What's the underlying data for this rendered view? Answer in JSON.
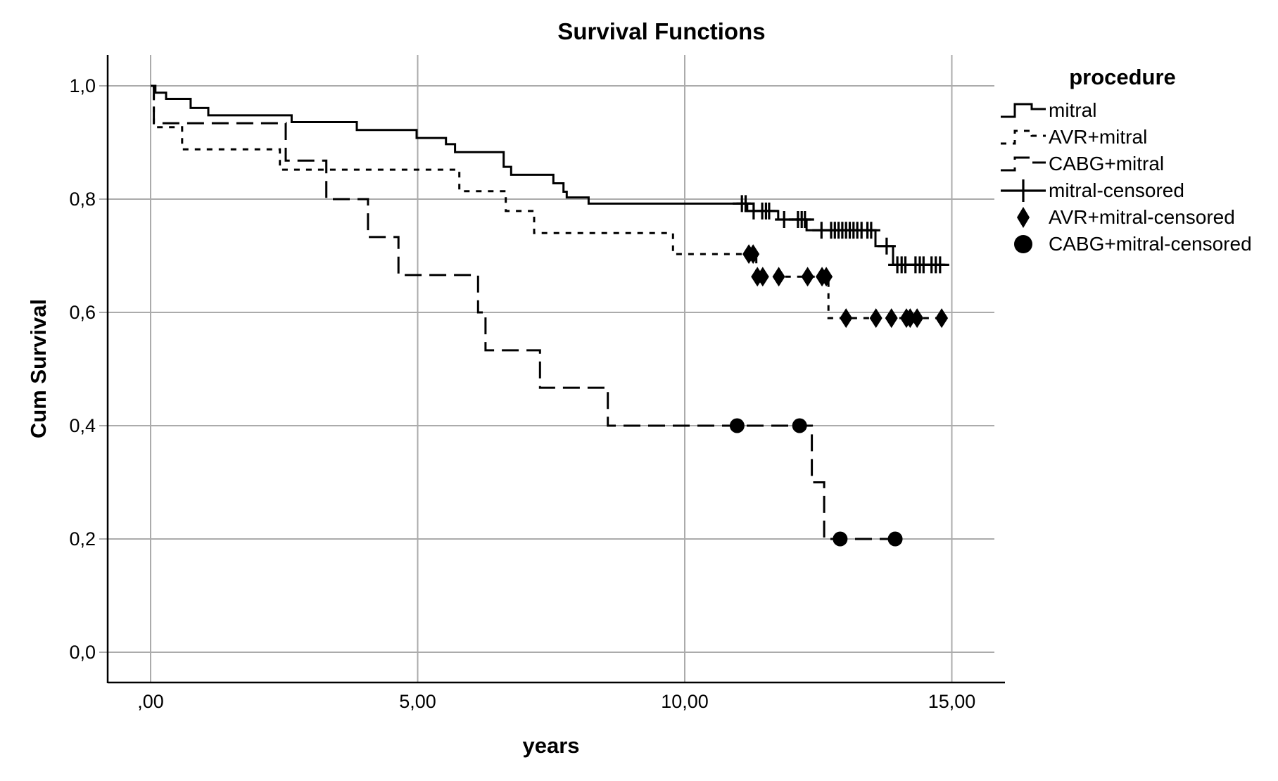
{
  "chart_data": {
    "type": "line",
    "subtype": "kaplan-meier-step",
    "title": "Survival Functions",
    "xlabel": "years",
    "ylabel": "Cum Survival",
    "legend_title": "procedure",
    "legend_position": "right",
    "grid": true,
    "xlim": [
      -0.8,
      16.0
    ],
    "ylim": [
      -0.05,
      1.05
    ],
    "x_ticks": [
      {
        "v": 0,
        "label": ",00"
      },
      {
        "v": 5,
        "label": "5,00"
      },
      {
        "v": 10,
        "label": "10,00"
      },
      {
        "v": 15,
        "label": "15,00"
      }
    ],
    "y_ticks": [
      {
        "v": 1.0,
        "label": "1,0"
      },
      {
        "v": 0.8,
        "label": "0,8"
      },
      {
        "v": 0.6,
        "label": "0,6"
      },
      {
        "v": 0.4,
        "label": "0,4"
      },
      {
        "v": 0.2,
        "label": "0,2"
      },
      {
        "v": 0.0,
        "label": "0,0"
      }
    ],
    "colors": {
      "line": "#000000",
      "grid": "#ababab",
      "background": "#ffffff"
    },
    "series": [
      {
        "name": "mitral",
        "dash": "solid",
        "steps": [
          [
            0,
            1.0
          ],
          [
            0.09,
            0.988
          ],
          [
            0.29,
            0.977
          ],
          [
            0.75,
            0.961
          ],
          [
            1.08,
            0.948
          ],
          [
            2.64,
            0.936
          ],
          [
            3.86,
            0.922
          ],
          [
            4.98,
            0.908
          ],
          [
            5.53,
            0.897
          ],
          [
            5.7,
            0.883
          ],
          [
            6.61,
            0.857
          ],
          [
            6.75,
            0.843
          ],
          [
            7.54,
            0.828
          ],
          [
            7.73,
            0.813
          ],
          [
            7.79,
            0.803
          ],
          [
            8.2,
            0.792
          ],
          [
            11.17,
            0.779
          ],
          [
            11.75,
            0.764
          ],
          [
            12.28,
            0.745
          ],
          [
            13.57,
            0.717
          ],
          [
            13.9,
            0.684
          ]
        ],
        "end_t": 14.9
      },
      {
        "name": "AVR+mitral",
        "dash": "short",
        "steps": [
          [
            0,
            1.0
          ],
          [
            0.06,
            0.927
          ],
          [
            0.59,
            0.888
          ],
          [
            2.42,
            0.852
          ],
          [
            5.78,
            0.814
          ],
          [
            6.65,
            0.779
          ],
          [
            7.18,
            0.74
          ],
          [
            9.78,
            0.703
          ],
          [
            11.34,
            0.663
          ],
          [
            12.69,
            0.59
          ]
        ],
        "end_t": 14.87
      },
      {
        "name": "CABG+mitral",
        "dash": "long",
        "steps": [
          [
            0,
            1.0
          ],
          [
            0.06,
            0.934
          ],
          [
            2.53,
            0.868
          ],
          [
            3.29,
            0.8
          ],
          [
            4.07,
            0.733
          ],
          [
            4.64,
            0.666
          ],
          [
            6.13,
            0.6
          ],
          [
            6.27,
            0.533
          ],
          [
            7.29,
            0.467
          ],
          [
            8.56,
            0.4
          ],
          [
            12.38,
            0.3
          ],
          [
            12.61,
            0.2
          ]
        ],
        "end_t": 14.1
      }
    ],
    "censored": [
      {
        "name": "mitral-censored",
        "marker": "plus",
        "points": [
          [
            11.07,
            0.792
          ],
          [
            11.14,
            0.792
          ],
          [
            11.29,
            0.779
          ],
          [
            11.45,
            0.779
          ],
          [
            11.52,
            0.779
          ],
          [
            11.58,
            0.779
          ],
          [
            11.86,
            0.764
          ],
          [
            12.12,
            0.764
          ],
          [
            12.19,
            0.764
          ],
          [
            12.25,
            0.764
          ],
          [
            12.56,
            0.745
          ],
          [
            12.74,
            0.745
          ],
          [
            12.81,
            0.745
          ],
          [
            12.88,
            0.745
          ],
          [
            12.95,
            0.745
          ],
          [
            13.02,
            0.745
          ],
          [
            13.09,
            0.745
          ],
          [
            13.16,
            0.745
          ],
          [
            13.23,
            0.745
          ],
          [
            13.31,
            0.745
          ],
          [
            13.42,
            0.745
          ],
          [
            13.49,
            0.745
          ],
          [
            13.78,
            0.717
          ],
          [
            13.98,
            0.684
          ],
          [
            14.06,
            0.684
          ],
          [
            14.13,
            0.684
          ],
          [
            14.32,
            0.684
          ],
          [
            14.4,
            0.684
          ],
          [
            14.47,
            0.684
          ],
          [
            14.62,
            0.684
          ],
          [
            14.7,
            0.684
          ],
          [
            14.78,
            0.684
          ]
        ]
      },
      {
        "name": "AVR+mitral-censored",
        "marker": "diamond",
        "points": [
          [
            11.2,
            0.703
          ],
          [
            11.28,
            0.703
          ],
          [
            11.36,
            0.663
          ],
          [
            11.46,
            0.663
          ],
          [
            11.76,
            0.663
          ],
          [
            12.3,
            0.663
          ],
          [
            12.57,
            0.663
          ],
          [
            12.65,
            0.663
          ],
          [
            13.02,
            0.59
          ],
          [
            13.58,
            0.59
          ],
          [
            13.87,
            0.59
          ],
          [
            14.15,
            0.59
          ],
          [
            14.22,
            0.59
          ],
          [
            14.35,
            0.59
          ],
          [
            14.81,
            0.59
          ]
        ]
      },
      {
        "name": "CABG+mitral-censored",
        "marker": "circle",
        "points": [
          [
            10.98,
            0.4
          ],
          [
            12.15,
            0.4
          ],
          [
            12.91,
            0.2
          ],
          [
            13.94,
            0.2
          ]
        ]
      }
    ]
  }
}
